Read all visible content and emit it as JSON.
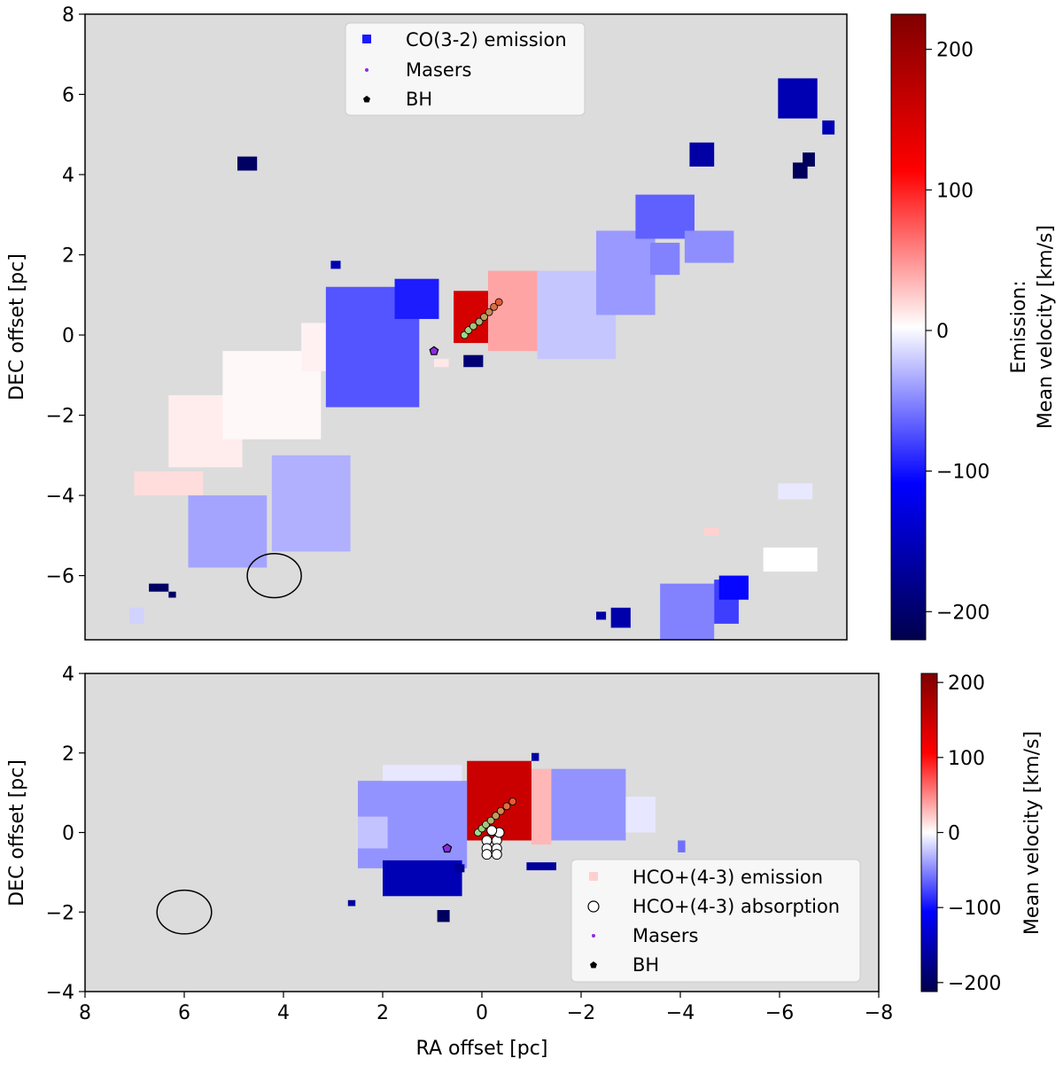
{
  "chart_data": [
    {
      "type": "heatmap",
      "panel": "top",
      "title": "",
      "xlabel": "",
      "ylabel": "DEC offset [pc]",
      "xlim": [
        8,
        -7.5
      ],
      "ylim": [
        -7.6,
        8
      ],
      "yticks": [
        -6,
        -4,
        -2,
        0,
        2,
        4,
        6,
        8
      ],
      "yticklabels": [
        "−6",
        "−4",
        "−2",
        "0",
        "2",
        "4",
        "6",
        "8"
      ],
      "colorbar": {
        "label_line1": "Emission:",
        "label_line2": "Mean velocity [km/s]",
        "vmin": -220,
        "vmax": 225,
        "ticks": [
          -200,
          -100,
          0,
          100,
          200
        ],
        "ticklabels": [
          "−200",
          "−100",
          "0",
          "100",
          "200"
        ]
      },
      "legend": {
        "placement": "upper center",
        "entries": [
          {
            "label": "CO(3-2) emission",
            "color": "#1a1aff",
            "marker": "square"
          },
          {
            "label": "Masers",
            "color": "#8a2be2",
            "marker": "dot"
          },
          {
            "label": "BH",
            "color": "#000000",
            "marker": "pentagon"
          }
        ]
      },
      "beam": {
        "x": 4.15,
        "y": -6.0,
        "rx": 0.55,
        "ry": 0.55
      },
      "bh": {
        "x": 0.9,
        "y": -0.4
      },
      "masers": [
        {
          "x": 0.28,
          "y": 0.0,
          "v": -40
        },
        {
          "x": 0.2,
          "y": 0.12,
          "v": -20
        },
        {
          "x": 0.1,
          "y": 0.22,
          "v": 0
        },
        {
          "x": -0.02,
          "y": 0.33,
          "v": 30
        },
        {
          "x": -0.12,
          "y": 0.45,
          "v": 70
        },
        {
          "x": -0.22,
          "y": 0.57,
          "v": 110
        },
        {
          "x": -0.32,
          "y": 0.7,
          "v": 150
        },
        {
          "x": -0.42,
          "y": 0.82,
          "v": 190
        }
      ],
      "regions": [
        {
          "x0": 7.0,
          "x1": 5.6,
          "y0": -4.0,
          "y1": -3.4,
          "v": 15
        },
        {
          "x0": 6.3,
          "x1": 4.8,
          "y0": -3.3,
          "y1": -1.5,
          "v": 8
        },
        {
          "x0": 5.2,
          "x1": 3.2,
          "y0": -2.6,
          "y1": -0.4,
          "v": 3
        },
        {
          "x0": 3.6,
          "x1": 2.0,
          "y0": -0.9,
          "y1": 0.3,
          "v": 6
        },
        {
          "x0": 4.2,
          "x1": 2.6,
          "y0": -5.4,
          "y1": -3.0,
          "v": -35
        },
        {
          "x0": 5.9,
          "x1": 4.3,
          "y0": -5.8,
          "y1": -4.0,
          "v": -40
        },
        {
          "x0": 3.1,
          "x1": 1.2,
          "y0": -1.8,
          "y1": 1.2,
          "v": -75
        },
        {
          "x0": 1.7,
          "x1": 0.8,
          "y0": 0.4,
          "y1": 1.4,
          "v": -100
        },
        {
          "x0": 0.5,
          "x1": -0.8,
          "y0": -0.2,
          "y1": 1.1,
          "v": 150
        },
        {
          "x0": -0.2,
          "x1": -1.4,
          "y0": -0.4,
          "y1": 1.6,
          "v": 40
        },
        {
          "x0": -1.2,
          "x1": -2.8,
          "y0": -0.6,
          "y1": 1.6,
          "v": -25
        },
        {
          "x0": -2.4,
          "x1": -3.6,
          "y0": 0.5,
          "y1": 2.6,
          "v": -45
        },
        {
          "x0": -3.2,
          "x1": -4.4,
          "y0": 2.4,
          "y1": 3.5,
          "v": -70
        },
        {
          "x0": -3.5,
          "x1": -4.1,
          "y0": 1.5,
          "y1": 2.3,
          "v": -55
        },
        {
          "x0": -4.2,
          "x1": -5.2,
          "y0": 1.8,
          "y1": 2.6,
          "v": -50
        },
        {
          "x0": -3.7,
          "x1": -4.8,
          "y0": -6.2,
          "y1": -7.6,
          "v": -55
        },
        {
          "x0": -4.8,
          "x1": -5.3,
          "y0": -6.1,
          "y1": -7.2,
          "v": -85
        },
        {
          "x0": -4.9,
          "x1": -5.5,
          "y0": -6.0,
          "y1": -6.6,
          "v": -110
        },
        {
          "x0": -5.8,
          "x1": -6.9,
          "y0": -5.3,
          "y1": -5.9,
          "v": 0
        },
        {
          "x0": -6.1,
          "x1": -6.8,
          "y0": -3.7,
          "y1": -4.1,
          "v": -10
        },
        {
          "x0": -4.6,
          "x1": -4.9,
          "y0": -4.8,
          "y1": -5.0,
          "v": 20
        },
        {
          "x0": 7.1,
          "x1": 6.8,
          "y0": -6.8,
          "y1": -7.2,
          "v": -20
        },
        {
          "x0": 0.3,
          "x1": -0.1,
          "y0": -0.5,
          "y1": -0.8,
          "v": -200
        },
        {
          "x0": 0.9,
          "x1": 0.6,
          "y0": -0.6,
          "y1": -0.8,
          "v": 10
        },
        {
          "x0": 4.9,
          "x1": 4.5,
          "y0": 4.1,
          "y1": 4.45,
          "v": -210
        },
        {
          "x0": 3.0,
          "x1": 2.8,
          "y0": 1.65,
          "y1": 1.85,
          "v": -160
        },
        {
          "x0": 6.7,
          "x1": 6.3,
          "y0": -6.2,
          "y1": -6.4,
          "v": -210
        },
        {
          "x0": 6.3,
          "x1": 6.15,
          "y0": -6.4,
          "y1": -6.55,
          "v": -210
        },
        {
          "x0": -2.4,
          "x1": -2.6,
          "y0": -6.9,
          "y1": -7.1,
          "v": -170
        },
        {
          "x0": -2.7,
          "x1": -3.1,
          "y0": -6.8,
          "y1": -7.3,
          "v": -165
        },
        {
          "x0": -4.3,
          "x1": -4.8,
          "y0": 4.2,
          "y1": 4.8,
          "v": -170
        },
        {
          "x0": -6.1,
          "x1": -6.9,
          "y0": 5.4,
          "y1": 6.4,
          "v": -160
        },
        {
          "x0": -7.0,
          "x1": -7.25,
          "y0": 5.0,
          "y1": 5.35,
          "v": -160
        },
        {
          "x0": -6.6,
          "x1": -6.85,
          "y0": 4.2,
          "y1": 4.55,
          "v": -215
        },
        {
          "x0": -6.4,
          "x1": -6.7,
          "y0": 3.9,
          "y1": 4.3,
          "v": -215
        }
      ]
    },
    {
      "type": "heatmap",
      "panel": "bottom",
      "title": "",
      "xlabel": "RA offset [pc]",
      "ylabel": "DEC offset [pc]",
      "xlim": [
        8,
        -8
      ],
      "ylim": [
        -4,
        4
      ],
      "xticks": [
        8,
        6,
        4,
        2,
        0,
        -2,
        -4,
        -6,
        -8
      ],
      "xticklabels": [
        "8",
        "6",
        "4",
        "2",
        "0",
        "−2",
        "−4",
        "−6",
        "−8"
      ],
      "yticks": [
        -4,
        -2,
        0,
        2,
        4
      ],
      "yticklabels": [
        "−4",
        "−2",
        "0",
        "2",
        "4"
      ],
      "colorbar": {
        "label_line1": "Mean velocity [km/s]",
        "vmin": -212,
        "vmax": 212,
        "ticks": [
          -200,
          -100,
          0,
          100,
          200
        ],
        "ticklabels": [
          "−200",
          "−100",
          "0",
          "100",
          "200"
        ]
      },
      "legend": {
        "placement": "lower right",
        "entries": [
          {
            "label": "HCO+(4-3) emission",
            "color": "#ffd0d0",
            "marker": "square"
          },
          {
            "label": "HCO+(4-3) absorption",
            "color": "#000000",
            "marker": "open-circle"
          },
          {
            "label": "Masers",
            "color": "#8a2be2",
            "marker": "dot"
          },
          {
            "label": "BH",
            "color": "#000000",
            "marker": "pentagon"
          }
        ]
      },
      "beam": {
        "x": 6.0,
        "y": -2.0,
        "rx": 0.55,
        "ry": 0.55
      },
      "bh": {
        "x": 0.7,
        "y": -0.4
      },
      "masers": [
        {
          "x": 0.08,
          "y": 0.0,
          "v": -40
        },
        {
          "x": 0.0,
          "y": 0.1,
          "v": -20
        },
        {
          "x": -0.08,
          "y": 0.2,
          "v": 0
        },
        {
          "x": -0.18,
          "y": 0.3,
          "v": 30
        },
        {
          "x": -0.28,
          "y": 0.42,
          "v": 70
        },
        {
          "x": -0.38,
          "y": 0.54,
          "v": 110
        },
        {
          "x": -0.5,
          "y": 0.66,
          "v": 150
        },
        {
          "x": -0.62,
          "y": 0.78,
          "v": 190
        }
      ],
      "absorption": [
        {
          "x": -0.1,
          "y": -0.2
        },
        {
          "x": -0.3,
          "y": -0.2
        },
        {
          "x": -0.1,
          "y": -0.4
        },
        {
          "x": -0.3,
          "y": -0.4
        },
        {
          "x": -0.1,
          "y": -0.55
        },
        {
          "x": -0.3,
          "y": -0.55
        },
        {
          "x": -0.35,
          "y": 0.0
        },
        {
          "x": -0.2,
          "y": 0.05
        }
      ],
      "regions": [
        {
          "x0": 2.5,
          "x1": 0.3,
          "y0": -0.9,
          "y1": 1.3,
          "v": -45
        },
        {
          "x0": 2.0,
          "x1": 0.4,
          "y0": 1.3,
          "y1": 1.7,
          "v": -10
        },
        {
          "x0": 2.5,
          "x1": 1.9,
          "y0": -0.4,
          "y1": 0.4,
          "v": -25
        },
        {
          "x0": 2.0,
          "x1": 0.4,
          "y0": -1.6,
          "y1": -0.7,
          "v": -150
        },
        {
          "x0": 0.3,
          "x1": -1.0,
          "y0": -0.2,
          "y1": 1.8,
          "v": 150
        },
        {
          "x0": -1.0,
          "x1": -1.4,
          "y0": -0.3,
          "y1": 1.6,
          "v": 30
        },
        {
          "x0": -1.4,
          "x1": -2.9,
          "y0": -0.2,
          "y1": 1.6,
          "v": -45
        },
        {
          "x0": -2.9,
          "x1": -3.5,
          "y0": 0.0,
          "y1": 0.9,
          "v": -10
        },
        {
          "x0": -0.9,
          "x1": -1.5,
          "y0": -0.75,
          "y1": -0.95,
          "v": -165
        },
        {
          "x0": -1.0,
          "x1": -1.15,
          "y0": 1.8,
          "y1": 2.0,
          "v": -160
        },
        {
          "x0": 0.9,
          "x1": 0.65,
          "y0": -1.95,
          "y1": -2.25,
          "v": -200
        },
        {
          "x0": 2.7,
          "x1": 2.55,
          "y0": -1.7,
          "y1": -1.85,
          "v": -165
        },
        {
          "x0": 0.55,
          "x1": 0.35,
          "y0": -0.8,
          "y1": -1.0,
          "v": -170
        },
        {
          "x0": -3.95,
          "x1": -4.1,
          "y0": -0.2,
          "y1": -0.5,
          "v": -60
        }
      ]
    }
  ]
}
